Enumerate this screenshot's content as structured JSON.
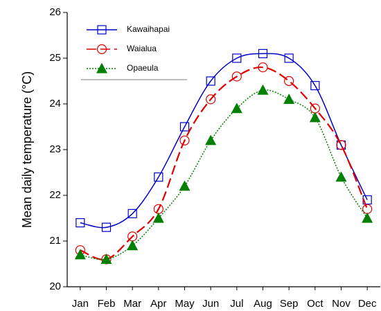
{
  "chart_data": {
    "type": "line",
    "ylabel": "Mean daily temperature (°C)",
    "categories": [
      "Jan",
      "Feb",
      "Mar",
      "Apr",
      "May",
      "Jun",
      "Jul",
      "Aug",
      "Sep",
      "Oct",
      "Nov",
      "Dec"
    ],
    "series": [
      {
        "name": "Kawaihapai",
        "color": "#0000cc",
        "linestyle": "solid",
        "marker": "square",
        "values": [
          21.4,
          21.3,
          21.6,
          22.4,
          23.5,
          24.5,
          25.0,
          25.1,
          25.0,
          24.4,
          23.1,
          21.9
        ]
      },
      {
        "name": "Waialua",
        "color": "#e00000",
        "linestyle": "dashed",
        "marker": "circle",
        "values": [
          20.8,
          20.6,
          21.1,
          21.7,
          23.2,
          24.1,
          24.6,
          24.8,
          24.5,
          23.9,
          23.1,
          21.7
        ]
      },
      {
        "name": "Opaeula",
        "color": "#008000",
        "linestyle": "dotted",
        "marker": "triangle",
        "values": [
          20.7,
          20.6,
          20.9,
          21.5,
          22.2,
          23.2,
          23.9,
          24.3,
          24.1,
          23.7,
          22.4,
          21.5
        ]
      }
    ],
    "ylim": [
      20,
      26
    ],
    "yticks": [
      20,
      21,
      22,
      23,
      24,
      25,
      26
    ],
    "legend": "upper left"
  }
}
